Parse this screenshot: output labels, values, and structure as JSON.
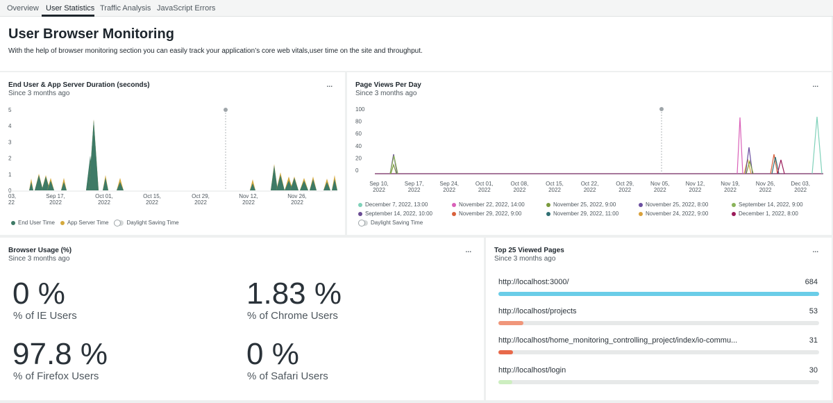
{
  "tabs": [
    {
      "label": "Overview"
    },
    {
      "label": "User Statistics",
      "active": true
    },
    {
      "label": "Traffic Analysis"
    },
    {
      "label": "JavaScript Errors"
    }
  ],
  "header": {
    "title": "User Browser Monitoring",
    "description": "With the help of browser monitoring section you can easily track your application’s core web vitals,user time on the site and throughput."
  },
  "widget1": {
    "title": "End User & App Server Duration (seconds)",
    "subtitle": "Since 3 months ago",
    "menu": "...",
    "legend": [
      {
        "label": "End User Time",
        "color": "#3e7a66"
      },
      {
        "label": "App Server Time",
        "color": "#d4a93d"
      },
      {
        "label": "Daylight Saving Time",
        "toggle": true
      }
    ],
    "chart_data": {
      "type": "area",
      "ylim": [
        0,
        5
      ],
      "yticks": [
        "5",
        "4",
        "3",
        "2",
        "1",
        "0"
      ],
      "xticks": [
        {
          "line1": "03,",
          "line2": "22"
        },
        {
          "line1": "Sep 17,",
          "line2": "2022"
        },
        {
          "line1": "Oct 01,",
          "line2": "2022"
        },
        {
          "line1": "Oct 15,",
          "line2": "2022"
        },
        {
          "line1": "Oct 29,",
          "line2": "2022"
        },
        {
          "line1": "Nov 12,",
          "line2": "2022"
        },
        {
          "line1": "Nov 26,",
          "line2": "2022"
        }
      ],
      "series": [
        {
          "name": "End User Time",
          "color": "#3e7a66"
        },
        {
          "name": "App Server Time",
          "color": "#d4a93d"
        }
      ]
    }
  },
  "widget2": {
    "title": "Page Views Per Day",
    "subtitle": "Since 3 months ago",
    "menu": "...",
    "chart_data": {
      "type": "line",
      "ylim": [
        0,
        100
      ],
      "yticks": [
        "100",
        "80",
        "60",
        "40",
        "20",
        "0"
      ],
      "xticks": [
        {
          "line1": "Sep 10,",
          "line2": "2022"
        },
        {
          "line1": "Sep 17,",
          "line2": "2022"
        },
        {
          "line1": "Sep 24,",
          "line2": "2022"
        },
        {
          "line1": "Oct 01,",
          "line2": "2022"
        },
        {
          "line1": "Oct 08,",
          "line2": "2022"
        },
        {
          "line1": "Oct 15,",
          "line2": "2022"
        },
        {
          "line1": "Oct 22,",
          "line2": "2022"
        },
        {
          "line1": "Oct 29,",
          "line2": "2022"
        },
        {
          "line1": "Nov 05,",
          "line2": "2022"
        },
        {
          "line1": "Nov 12,",
          "line2": "2022"
        },
        {
          "line1": "Nov 19,",
          "line2": "2022"
        },
        {
          "line1": "Nov 26,",
          "line2": "2022"
        },
        {
          "line1": "Dec 03,",
          "line2": "2022"
        }
      ]
    },
    "legend": [
      {
        "label": "December 7, 2022, 13:00",
        "color": "#7fd1b9"
      },
      {
        "label": "November 22, 2022, 14:00",
        "color": "#d960b8"
      },
      {
        "label": "November 25, 2022, 9:00",
        "color": "#7a9a3c"
      },
      {
        "label": "November 25, 2022, 8:00",
        "color": "#6b4fa0"
      },
      {
        "label": "September 14, 2022, 9:00",
        "color": "#8ab35a"
      },
      {
        "label": "September 14, 2022, 10:00",
        "color": "#6a4c93"
      },
      {
        "label": "November 29, 2022, 9:00",
        "color": "#d9603b"
      },
      {
        "label": "November 29, 2022, 11:00",
        "color": "#2f6f73"
      },
      {
        "label": "November 24, 2022, 9:00",
        "color": "#d9a13b"
      },
      {
        "label": "December 1, 2022, 8:00",
        "color": "#9b1b5a"
      }
    ],
    "toggle_label": "Daylight Saving Time"
  },
  "widget3": {
    "title": "Browser Usage (%)",
    "subtitle": "Since 3 months ago",
    "menu": "...",
    "stats": [
      {
        "value": "0 %",
        "label": "% of IE Users"
      },
      {
        "value": "1.83 %",
        "label": "% of Chrome Users"
      },
      {
        "value": "97.8 %",
        "label": "% of Firefox Users"
      },
      {
        "value": "0 %",
        "label": "% of Safari Users"
      }
    ]
  },
  "widget4": {
    "title": "Top 25 Viewed Pages",
    "subtitle": "Since 3 months ago",
    "menu": "...",
    "max": 684,
    "pages": [
      {
        "url": "http://localhost:3000/",
        "count": "684",
        "value": 684,
        "color": "#6acde8"
      },
      {
        "url": "http://localhost/projects",
        "count": "53",
        "value": 53,
        "color": "#f0967a"
      },
      {
        "url": "http://localhost/home_monitoring_controlling_project/index/io-commu...",
        "count": "31",
        "value": 31,
        "color": "#e8694a"
      },
      {
        "url": "http://localhost/login",
        "count": "30",
        "value": 30,
        "color": "#cdeec0"
      }
    ]
  }
}
